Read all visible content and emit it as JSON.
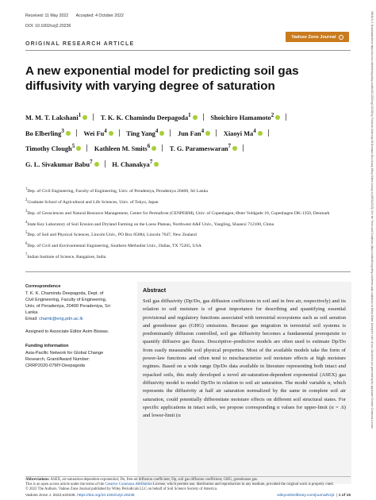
{
  "sidebar_text": "26946 8, 0, Downloaded from https://access.onlinelibrary.wiley.com/doi/10.1002/vzj2.20236 by Technical University Of Denmark Dtu Library, Wiley Online Library on [26/01/2023]. See the Terms and Conditions (https://onlinelibrary.wiley.com/terms-and-conditions) on Wiley Online Library for rules of use; OA articles are governed by the applicable Creative Commons License",
  "meta": {
    "received": "Received: 11 May 2022",
    "accepted": "Accepted: 4 October 2022",
    "doi": "DOI: 10.1002/vzj2.20236"
  },
  "journal_logo": "Vadose Zone Journal",
  "article_type": "ORIGINAL RESEARCH ARTICLE",
  "title": "A new exponential model for predicting soil gas diffusivity with varying degree of saturation",
  "authors": [
    {
      "name": "M. M. T. Lakshani",
      "sup": "1"
    },
    {
      "name": "T. K. K. Chamindu Deepagoda",
      "sup": "1"
    },
    {
      "name": "Shoichiro Hamamoto",
      "sup": "2"
    },
    {
      "name": "Bo Elberling",
      "sup": "3"
    },
    {
      "name": "Wei Fu",
      "sup": "4"
    },
    {
      "name": "Ting Yang",
      "sup": "4"
    },
    {
      "name": "Jun Fan",
      "sup": "4"
    },
    {
      "name": "Xiaoyi Ma",
      "sup": "4"
    },
    {
      "name": "Timothy Clough",
      "sup": "5"
    },
    {
      "name": "Kathleen M. Smits",
      "sup": "6"
    },
    {
      "name": "T. G. Parameswaran",
      "sup": "7"
    },
    {
      "name": "G. L. Sivakumar Babu",
      "sup": "7"
    },
    {
      "name": "H. Chanakya",
      "sup": "7"
    }
  ],
  "affiliations": [
    {
      "num": "1",
      "text": "Dep. of Civil Engineering, Faculty of Engineering, Univ. of Peradeniya, Peradeniya 20400, Sri Lanka"
    },
    {
      "num": "2",
      "text": "Graduate School of Agricultural and Life Sciences, Univ. of Tokyo, Japan"
    },
    {
      "num": "3",
      "text": "Dep. of Geosciences and Natural Resource Management, Center for Permafrost (CENPERM), Univ. of Copenhagen, Øster Voldgade 10, Copenhagen DK-1350, Denmark"
    },
    {
      "num": "4",
      "text": "State Key Laboratory of Soil Erosion and Dryland Farming on the Loess Plateau, Northwest A&F Univ., Yangling, Shaanxi 712100, China"
    },
    {
      "num": "5",
      "text": "Dep. of Soil and Physical Sciences, Lincoln Univ., PO Box 85084, Lincoln 7647, New Zealand"
    },
    {
      "num": "6",
      "text": "Dep. of Civil and Environmental Engineering, Southern Methodist Univ., Dallas, TX 75205, USA"
    },
    {
      "num": "7",
      "text": "Indian Institute of Science, Bangalore, India"
    }
  ],
  "correspondence": {
    "heading": "Correspondence",
    "body": "T. K. K. Chamindu Deepagoda, Dept. of Civil Engineering, Faculty of Engineering, Univ. of Peradeniya, 20400 Peradeniya, Sri Lanka.",
    "email_label": "Email:",
    "email": "chamk@eng.pdn.ac.lk",
    "editor": "Assigned to Associate Editor Asim Biswas."
  },
  "funding": {
    "heading": "Funding information",
    "body": "Asia-Pacific Network for Global Change Research, Grant/Award Number: CRRP2020-07MY-Deepagoda"
  },
  "abstract": {
    "heading": "Abstract",
    "text": "Soil gas diffusivity (Dp/Do, gas diffusion coefficients in soil and in free air, respectively) and its relation to soil moisture is of great importance for describing and quantifying essential provisional and regulatory functions associated with terrestrial ecosystems such as soil aeration and greenhouse gas (GHG) emissions. Because gas migration in terrestrial soil systems is predominantly diffusion controlled, soil gas diffusivity becomes a fundamental prerequisite to quantify diffusive gas fluxes. Descriptive–predictive models are often used to estimate Dp/Do from easily measurable soil physical properties. Most of the available models take the form of power-law functions and often tend to mischaracterize soil moisture effects at high moisture regimes. Based on a wide range Dp/Do data available in literature representing both intact and repacked soils, this study developed a novel air-saturation-dependent exponential (ASEX) gas diffusivity model to model Dp/Do in relation to soil air saturation. The model variable α, which represents the diffusivity at half air saturation normalized by the same in complete soil air saturation, could potentially differentiate moisture effects on different soil structural states. For specific applications in intact soils, we propose corresponding α values for upper-limit (α = .6) and lower-limit (α"
  },
  "abbreviations": {
    "label": "Abbreviations:",
    "text": "ASEX, air-saturation-dependent exponential; Do, free-air diffusion coefficient; Dp, soil gas diffusion coefficient; GHG, greenhouse gas."
  },
  "license": {
    "before": "This is an open access article under the terms of the",
    "link": "Creative Commons Attribution",
    "after": "License, which permits use, distribution and reproduction in any medium, provided the original work is properly cited.",
    "copyright": "© 2022 The Authors. Vadose Zone Journal published by Wiley Periodicals LLC on behalf of Soil Science Society of America."
  },
  "footer": {
    "citation": "Vadose Zone J. 2022;e20236.",
    "citation_doi": "https://doi.org/10.1002/vzj2.20236",
    "site": "wileyonlinelibrary.com/journal/vzj2",
    "page": "1 of 15"
  }
}
